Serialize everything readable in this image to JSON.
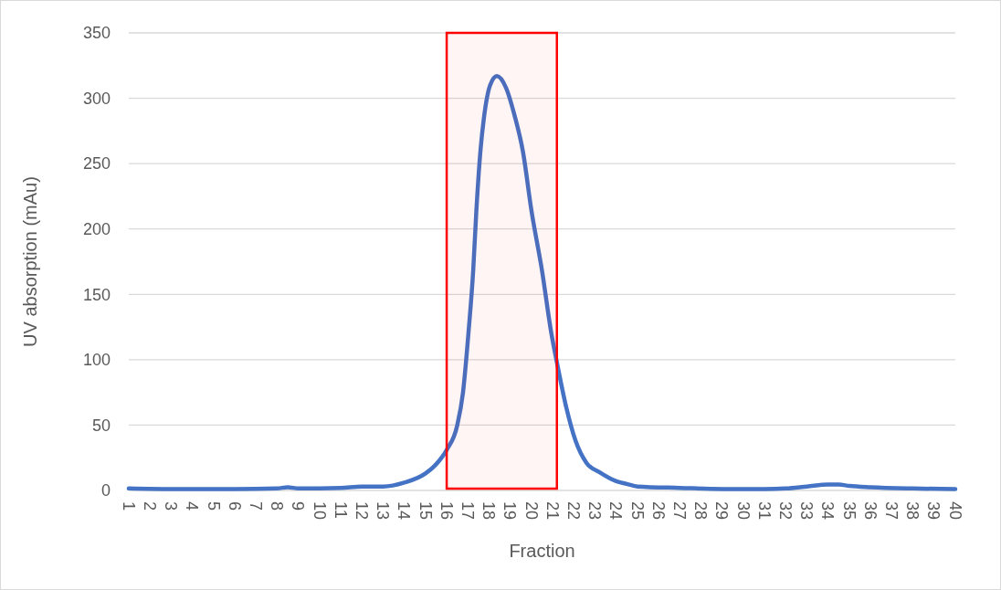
{
  "chart_data": {
    "type": "line",
    "xlabel": "Fraction",
    "ylabel": "UV absorption (mAu)",
    "xlim": [
      1,
      40
    ],
    "xticks": [
      1,
      2,
      3,
      4,
      5,
      6,
      7,
      8,
      9,
      10,
      11,
      12,
      13,
      14,
      15,
      16,
      17,
      18,
      19,
      20,
      21,
      22,
      23,
      24,
      25,
      26,
      27,
      28,
      29,
      30,
      31,
      32,
      33,
      34,
      35,
      36,
      37,
      38,
      39,
      40
    ],
    "ylim": [
      0,
      350
    ],
    "yticks": [
      0,
      50,
      100,
      150,
      200,
      250,
      300,
      350
    ],
    "grid": "y",
    "marker": "none",
    "line_style": "solid",
    "series": [
      {
        "color": "#4472c4",
        "x": [
          1,
          3,
          6,
          8,
          8.5,
          9,
          11,
          12,
          13,
          14,
          15,
          15.5,
          16,
          16.5,
          16.77,
          17.03,
          17.25,
          17.4,
          17.6,
          17.75,
          18.05,
          18.37,
          18.8,
          19.2,
          19.6,
          20,
          20.5,
          20.93,
          21.2,
          21.65,
          22.08,
          22.6,
          23.2,
          24,
          24.5,
          25,
          27,
          30,
          31,
          32,
          33,
          34,
          34.5,
          35,
          36,
          38,
          40
        ],
        "values": [
          1.5,
          1,
          1,
          1.5,
          2.5,
          1.5,
          2,
          3,
          3,
          6,
          13,
          20,
          31,
          50,
          75,
          121,
          168,
          214,
          261,
          284,
          310,
          317,
          308,
          287,
          259,
          214,
          168,
          121,
          98,
          63,
          38,
          21,
          14,
          7,
          5,
          3,
          2,
          1,
          1,
          1.5,
          3,
          4.5,
          4.5,
          3.5,
          2.5,
          1.5,
          1
        ]
      }
    ],
    "bands": [
      {
        "axis": "x",
        "from": 16,
        "to": 21.2,
        "color": "#ff0000"
      }
    ]
  }
}
